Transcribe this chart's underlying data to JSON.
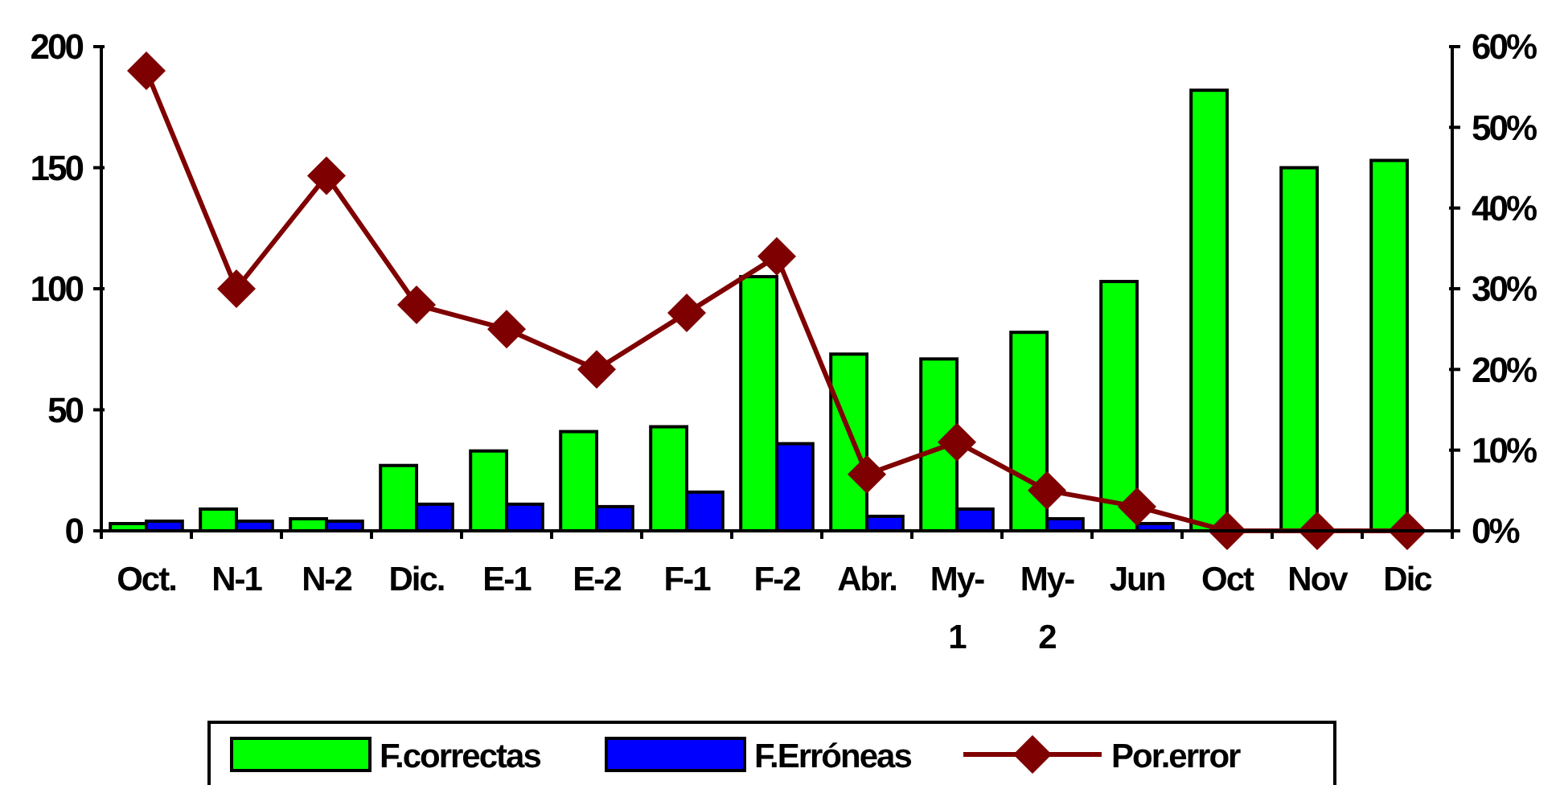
{
  "chart_data": {
    "type": "bar",
    "categories": [
      "Oct.",
      "N-1",
      "N-2",
      "Dic.",
      "E-1",
      "E-2",
      "F-1",
      "F-2",
      "Abr.",
      "My-1",
      "My-2",
      "Jun",
      "Oct",
      "Nov",
      "Dic"
    ],
    "series": [
      {
        "name": "F.correctas",
        "color": "#00ff00",
        "values": [
          3,
          9,
          5,
          27,
          33,
          41,
          43,
          105,
          73,
          71,
          82,
          103,
          182,
          150,
          153
        ]
      },
      {
        "name": "F.Erróneas",
        "color": "#0000ff",
        "values": [
          4,
          4,
          4,
          11,
          11,
          10,
          16,
          36,
          6,
          9,
          5,
          3,
          0,
          0,
          0
        ]
      },
      {
        "name": "Por.error",
        "type": "line",
        "axis": "y2",
        "color": "#7f0000",
        "marker": "diamond",
        "values": [
          57,
          30,
          44,
          28,
          25,
          20,
          27,
          34,
          7,
          11,
          5,
          3,
          0,
          0,
          0
        ]
      }
    ],
    "ylim": [
      0,
      200
    ],
    "yticks": [
      0,
      50,
      100,
      150,
      200
    ],
    "y2lim": [
      0,
      60
    ],
    "y2ticks": [
      {
        "value": 0,
        "label": "0%"
      },
      {
        "value": 10,
        "label": "10%"
      },
      {
        "value": 20,
        "label": "20%"
      },
      {
        "value": 30,
        "label": "30%"
      },
      {
        "value": 40,
        "label": "40%"
      },
      {
        "value": 50,
        "label": "50%"
      },
      {
        "value": 60,
        "label": "60%"
      }
    ],
    "grid": false,
    "legend": "bottom"
  }
}
